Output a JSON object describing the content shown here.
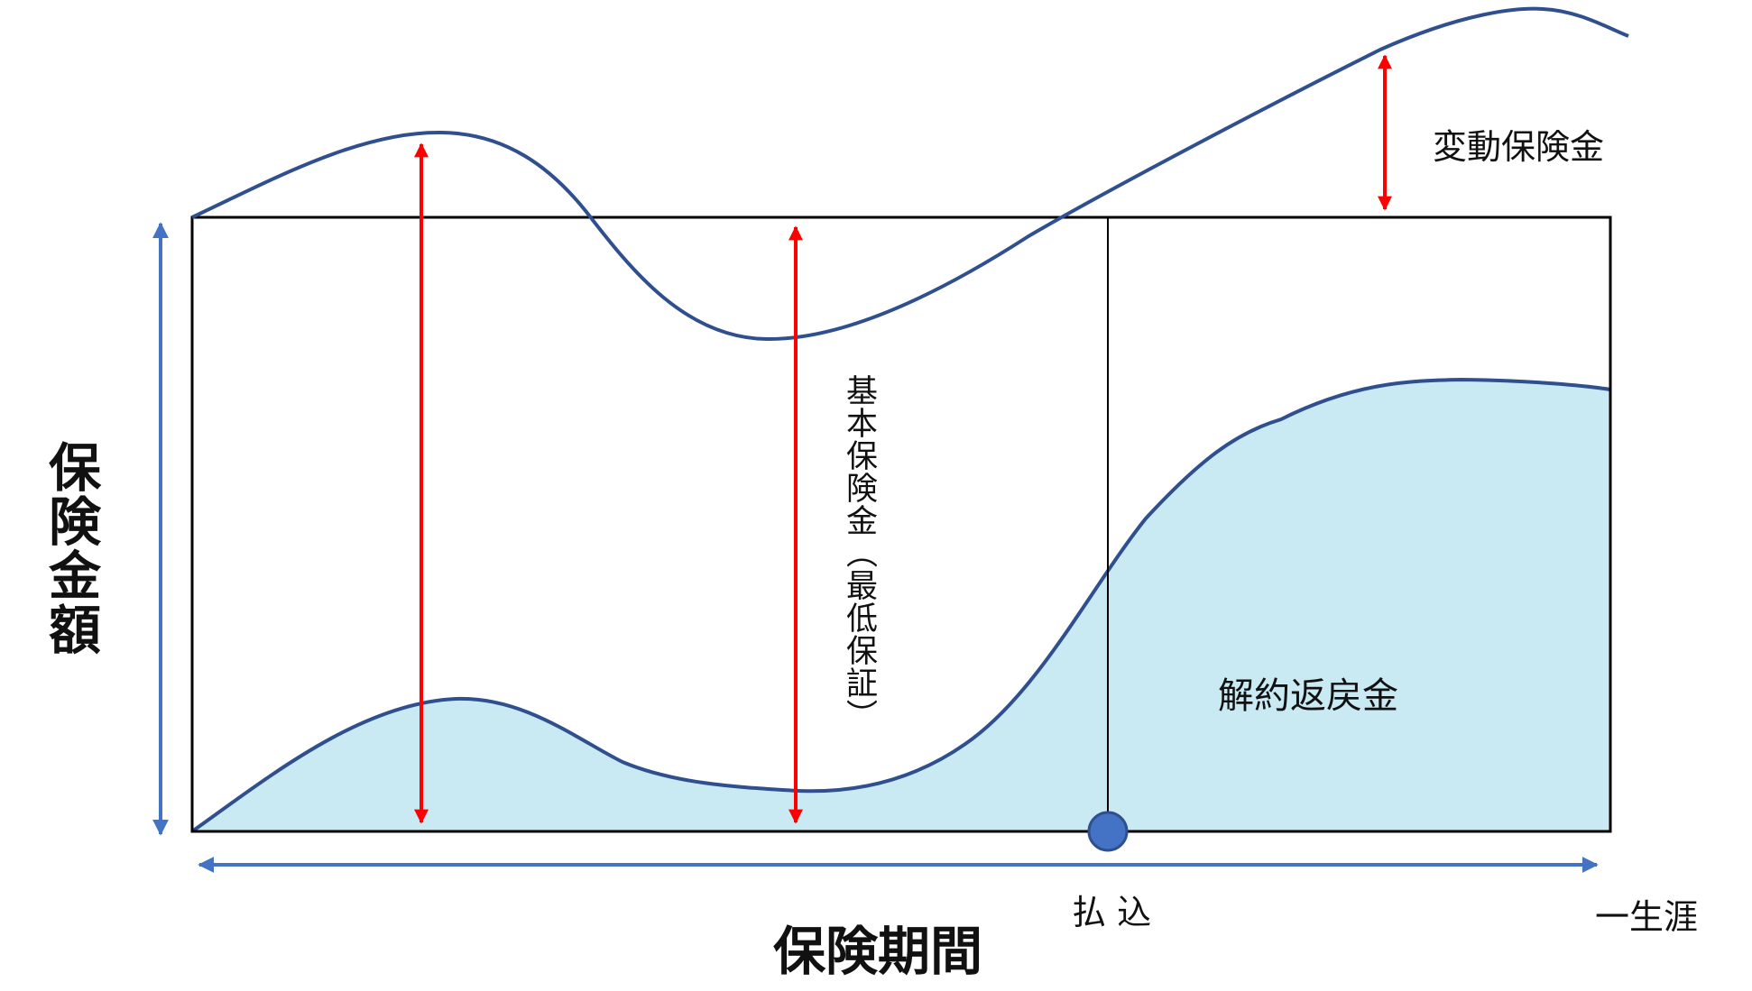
{
  "labels": {
    "variable_benefit": "変動保険金",
    "basic_benefit": "基本保険金（最低保証）",
    "surrender_value": "解約返戻金",
    "payment": "払 込",
    "whole_life": "一生涯",
    "y_axis": "保険金額",
    "x_axis": "保険期間"
  },
  "colors": {
    "frame": "#000000",
    "axis": "#4472c4",
    "curve": "#2f4f8f",
    "fill": "#c9eaf2",
    "arrow": "#ff0000",
    "marker": "#4472c4"
  }
}
